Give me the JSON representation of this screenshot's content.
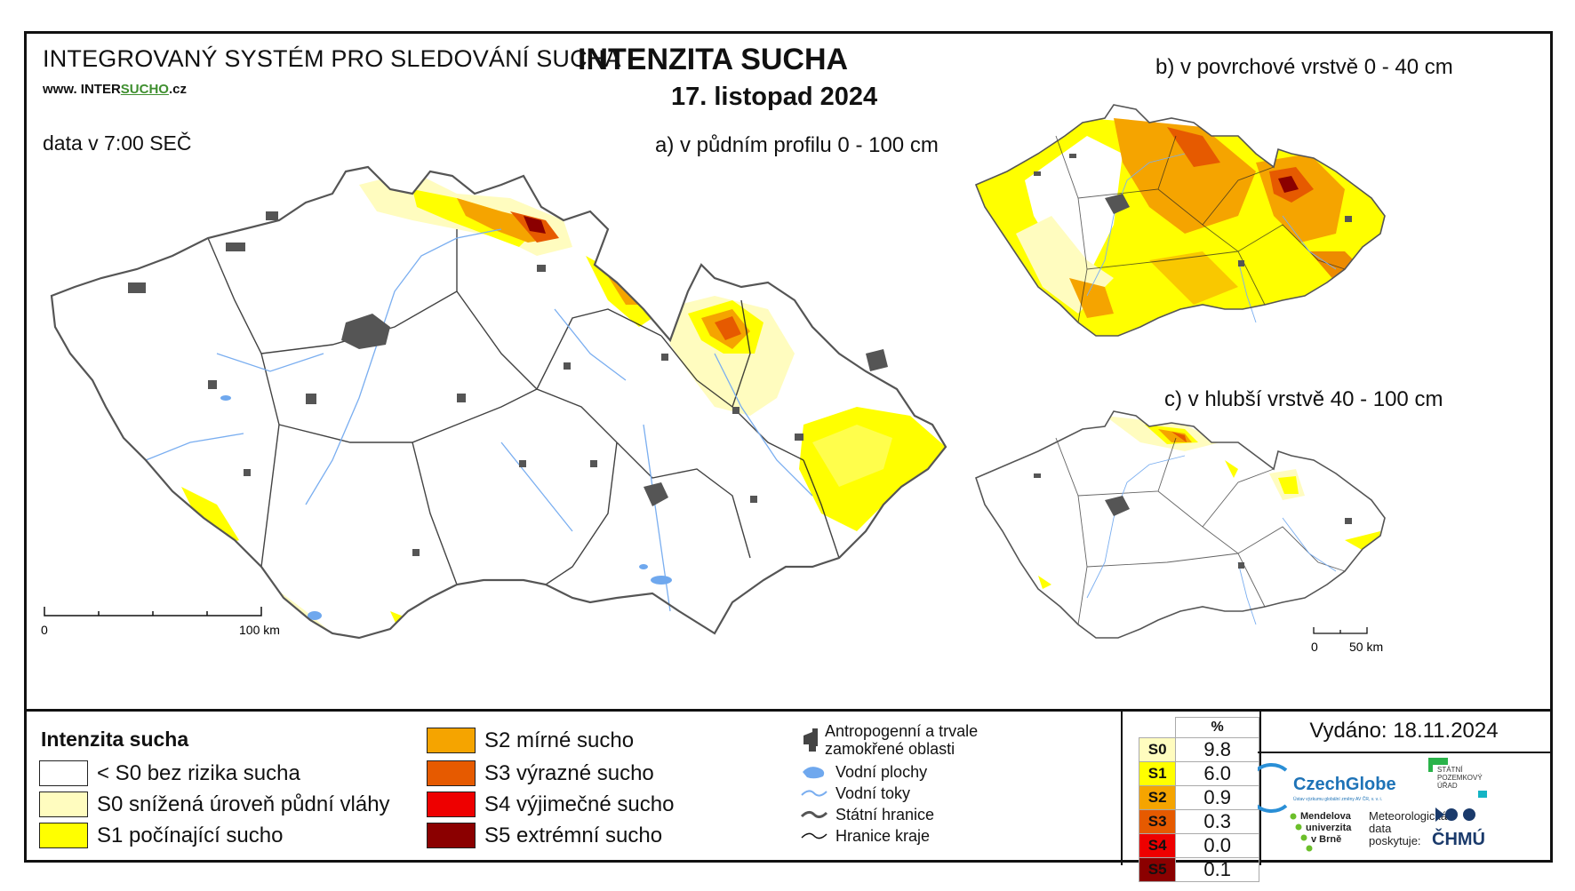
{
  "header": {
    "system_title": "INTEGROVANÝ SYSTÉM PRO SLEDOVÁNÍ SUCHA",
    "website_prefix": "www. INTER",
    "website_accent": "SUCHO",
    "website_suffix": ".cz",
    "data_time": "data v 7:00 SEČ",
    "main_title": "INTENZITA SUCHA",
    "date": "17. listopad 2024"
  },
  "maps": {
    "a_label": "a) v půdním profilu 0 - 100 cm",
    "b_label": "b) v povrchové vrstvě 0 - 40 cm",
    "c_label": "c) v hlubší vrstvě 40 - 100 cm",
    "scale_main": {
      "start": "0",
      "end": "100 km"
    },
    "scale_small": {
      "start": "0",
      "end": "50 km"
    }
  },
  "legend": {
    "title": "Intenzita sucha",
    "classes": [
      {
        "label": "< S0 bez rizika sucha",
        "color": "#ffffff"
      },
      {
        "label": "S0 snížená úroveň půdní vláhy",
        "color": "#fffcbf"
      },
      {
        "label": "S1 počínající sucho",
        "color": "#ffff00"
      },
      {
        "label": "S2 mírné sucho",
        "color": "#f5a400"
      },
      {
        "label": "S3 výrazné sucho",
        "color": "#e65a00"
      },
      {
        "label": "S4 výjimečné sucho",
        "color": "#ee0000"
      },
      {
        "label": "S5 extrémní sucho",
        "color": "#8b0000"
      }
    ],
    "symbols": [
      {
        "label": "Antropogenní a trvale zamokřené oblasti",
        "icon": "urban-area-icon"
      },
      {
        "label": "Vodní plochy",
        "icon": "water-body-icon"
      },
      {
        "label": "Vodní toky",
        "icon": "river-icon"
      },
      {
        "label": "Státní hranice",
        "icon": "state-border-icon"
      },
      {
        "label": "Hranice kraje",
        "icon": "region-border-icon"
      }
    ]
  },
  "percent_table": {
    "header": "%",
    "rows": [
      {
        "cls": "S0",
        "value": "9.8",
        "color": "#fffcbf"
      },
      {
        "cls": "S1",
        "value": "6.0",
        "color": "#ffff00"
      },
      {
        "cls": "S2",
        "value": "0.9",
        "color": "#f5a400"
      },
      {
        "cls": "S3",
        "value": "0.3",
        "color": "#e65a00"
      },
      {
        "cls": "S4",
        "value": "0.0",
        "color": "#ee0000"
      },
      {
        "cls": "S5",
        "value": "0.1",
        "color": "#8b0000"
      }
    ]
  },
  "footer": {
    "issued": "Vydáno: 18.11.2024",
    "czechglobe": "CzechGlobe",
    "czechglobe_sub": "Ústav výzkumu globální změny AV ČR, v. v. i.",
    "spu": "STÁTNÍ\nPOZEMKOVÝ\nÚŘAD",
    "mendel": "Mendelova\nuniverzita\nv Brně",
    "meteo": "Meteorologická\ndata\nposkytuje:",
    "chmu": "ČHMÚ"
  }
}
